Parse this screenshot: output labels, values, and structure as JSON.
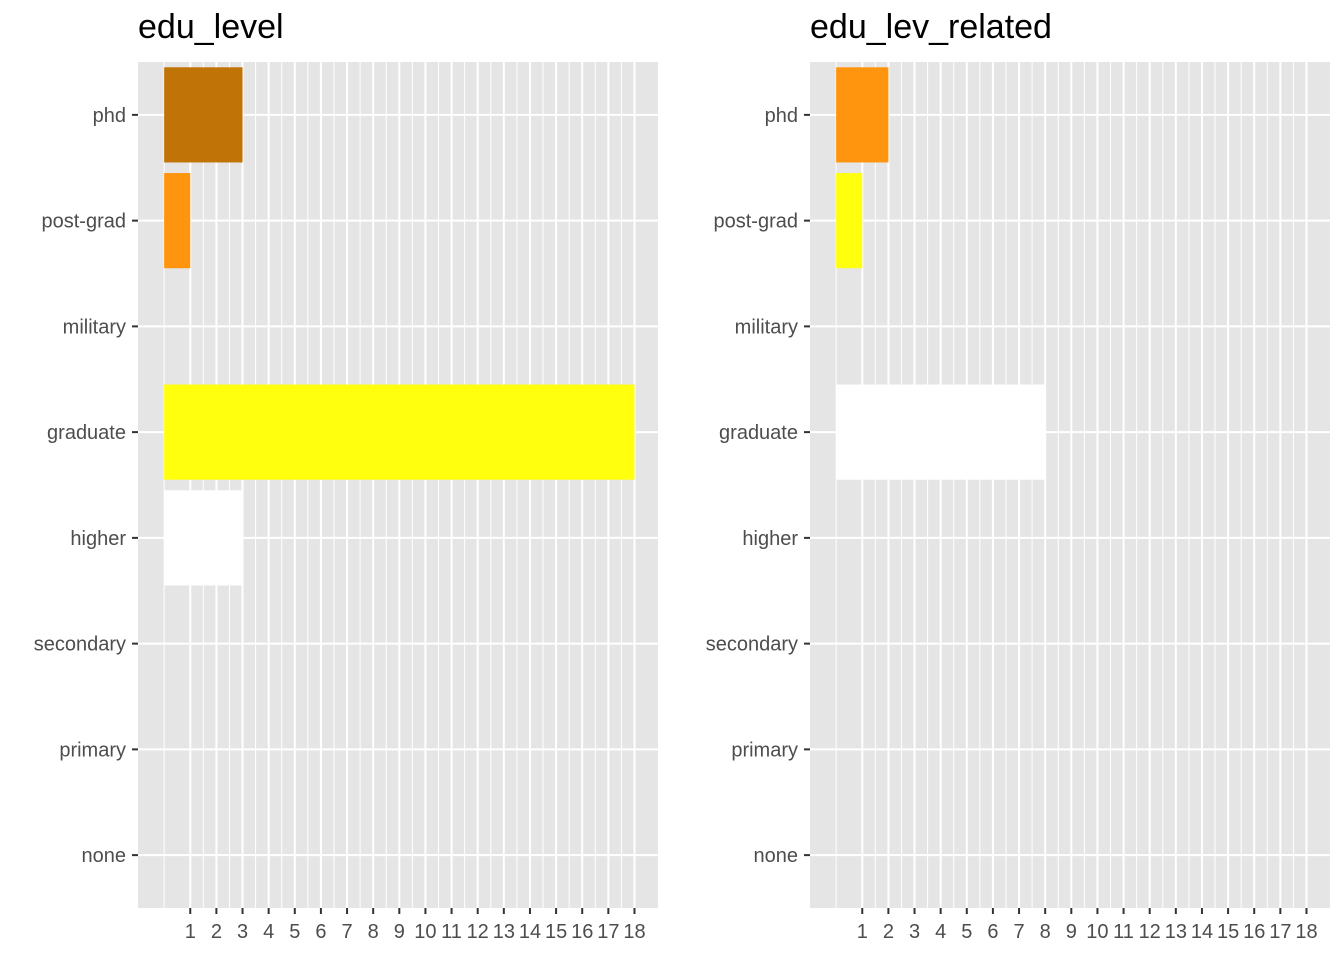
{
  "colors": {
    "panel_background": "#e5e5e5",
    "grid": "#ffffff",
    "tick_mark": "#333333",
    "tick_text": "#4d4d4d"
  },
  "chart_data": [
    {
      "type": "bar",
      "orientation": "horizontal",
      "title": "edu_level",
      "categories": [
        "phd",
        "post-grad",
        "military",
        "graduate",
        "higher",
        "secondary",
        "primary",
        "none"
      ],
      "values": [
        3,
        1,
        0,
        18,
        3,
        0,
        0,
        0
      ],
      "bar_colors": [
        "#c07306",
        "#ff950e",
        null,
        "#ffff0e",
        "#ffffff",
        null,
        null,
        null
      ],
      "x_ticks": [
        1,
        2,
        3,
        4,
        5,
        6,
        7,
        8,
        9,
        10,
        11,
        12,
        13,
        14,
        15,
        16,
        17,
        18
      ],
      "xlim": [
        -1,
        18.9
      ],
      "xlabel": "",
      "ylabel": "",
      "grid": true,
      "legend": "none"
    },
    {
      "type": "bar",
      "orientation": "horizontal",
      "title": "edu_lev_related",
      "categories": [
        "phd",
        "post-grad",
        "military",
        "graduate",
        "higher",
        "secondary",
        "primary",
        "none"
      ],
      "values": [
        2,
        1,
        0,
        8,
        0,
        0,
        0,
        0
      ],
      "bar_colors": [
        "#ff950e",
        "#ffff0e",
        null,
        "#ffffff",
        null,
        null,
        null,
        null
      ],
      "x_ticks": [
        1,
        2,
        3,
        4,
        5,
        6,
        7,
        8,
        9,
        10,
        11,
        12,
        13,
        14,
        15,
        16,
        17,
        18
      ],
      "xlim": [
        -1,
        18.9
      ],
      "xlabel": "",
      "ylabel": "",
      "grid": true,
      "legend": "none"
    }
  ]
}
